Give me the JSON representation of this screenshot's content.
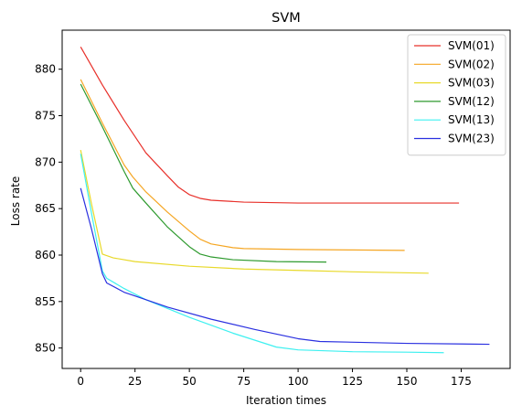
{
  "chart_data": {
    "type": "line",
    "title": "SVM",
    "xlabel": "Iteration times",
    "ylabel": "Loss rate",
    "xlim": [
      -8.5,
      197.5
    ],
    "ylim": [
      847.8,
      884.2
    ],
    "xticks": [
      0,
      25,
      50,
      75,
      100,
      125,
      150,
      175
    ],
    "yticks": [
      850,
      855,
      860,
      865,
      870,
      875,
      880
    ],
    "grid": false,
    "legend": "top-right",
    "series": [
      {
        "name": "SVM(01)",
        "color": "#e8302a",
        "points": [
          [
            0,
            882.4
          ],
          [
            10,
            878.3
          ],
          [
            20,
            874.5
          ],
          [
            30,
            871.0
          ],
          [
            40,
            868.5
          ],
          [
            45,
            867.3
          ],
          [
            50,
            866.5
          ],
          [
            55,
            866.1
          ],
          [
            60,
            865.9
          ],
          [
            75,
            865.7
          ],
          [
            100,
            865.6
          ],
          [
            150,
            865.6
          ],
          [
            174,
            865.6
          ]
        ]
      },
      {
        "name": "SVM(02)",
        "color": "#f5a623",
        "points": [
          [
            0,
            878.9
          ],
          [
            10,
            874.2
          ],
          [
            20,
            869.7
          ],
          [
            24,
            868.4
          ],
          [
            30,
            866.8
          ],
          [
            40,
            864.6
          ],
          [
            50,
            862.6
          ],
          [
            55,
            861.7
          ],
          [
            60,
            861.2
          ],
          [
            70,
            860.8
          ],
          [
            75,
            860.7
          ],
          [
            100,
            860.6
          ],
          [
            125,
            860.55
          ],
          [
            149,
            860.5
          ]
        ]
      },
      {
        "name": "SVM(03)",
        "color": "#e8d92a",
        "points": [
          [
            0,
            871.3
          ],
          [
            5,
            865.5
          ],
          [
            10,
            860.1
          ],
          [
            15,
            859.7
          ],
          [
            25,
            859.3
          ],
          [
            50,
            858.8
          ],
          [
            75,
            858.5
          ],
          [
            100,
            858.35
          ],
          [
            125,
            858.2
          ],
          [
            160,
            858.05
          ]
        ]
      },
      {
        "name": "SVM(12)",
        "color": "#2e9a2e",
        "points": [
          [
            0,
            878.4
          ],
          [
            10,
            873.8
          ],
          [
            20,
            869.0
          ],
          [
            24,
            867.2
          ],
          [
            30,
            865.6
          ],
          [
            40,
            863.0
          ],
          [
            50,
            860.9
          ],
          [
            55,
            860.1
          ],
          [
            60,
            859.8
          ],
          [
            70,
            859.5
          ],
          [
            90,
            859.3
          ],
          [
            113,
            859.25
          ]
        ]
      },
      {
        "name": "SVM(13)",
        "color": "#3ef0f0",
        "points": [
          [
            0,
            870.9
          ],
          [
            5,
            864.5
          ],
          [
            10,
            858.3
          ],
          [
            12,
            857.5
          ],
          [
            20,
            856.4
          ],
          [
            30,
            855.2
          ],
          [
            50,
            853.3
          ],
          [
            70,
            851.6
          ],
          [
            90,
            850.1
          ],
          [
            100,
            849.8
          ],
          [
            125,
            849.6
          ],
          [
            150,
            849.55
          ],
          [
            167,
            849.5
          ]
        ]
      },
      {
        "name": "SVM(23)",
        "color": "#2a30e0",
        "points": [
          [
            0,
            867.2
          ],
          [
            5,
            862.8
          ],
          [
            10,
            858.0
          ],
          [
            12,
            857.0
          ],
          [
            20,
            856.0
          ],
          [
            25,
            855.6
          ],
          [
            40,
            854.4
          ],
          [
            60,
            853.1
          ],
          [
            80,
            852.0
          ],
          [
            100,
            851.0
          ],
          [
            110,
            850.7
          ],
          [
            150,
            850.5
          ],
          [
            188,
            850.4
          ]
        ]
      }
    ]
  }
}
